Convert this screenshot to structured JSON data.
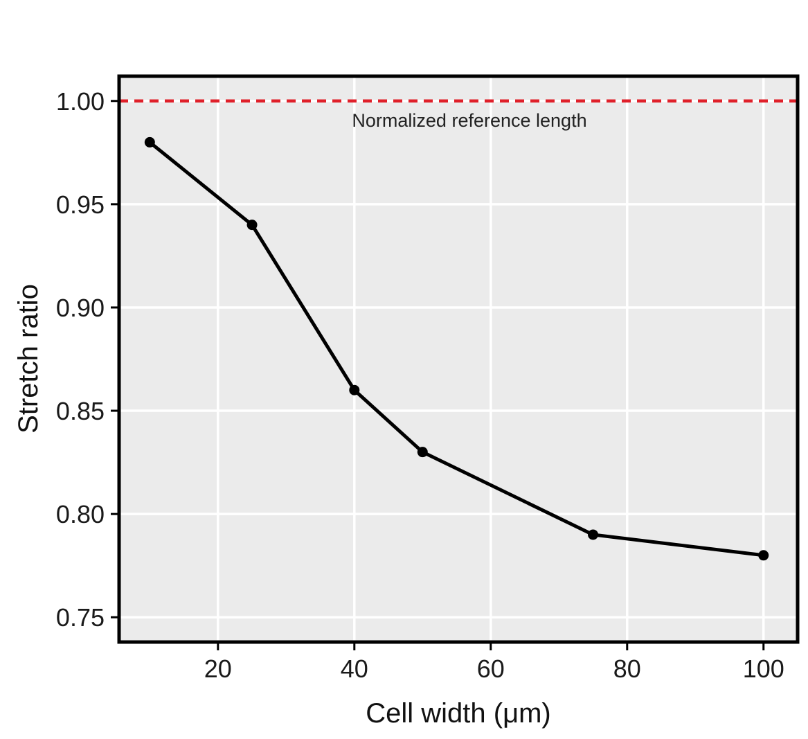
{
  "chart_data": {
    "type": "line",
    "title": "",
    "xlabel": "Cell width (μm)",
    "ylabel": "Stretch ratio",
    "xlim": [
      5.5,
      105
    ],
    "ylim": [
      0.738,
      1.012
    ],
    "xticks": [
      20,
      40,
      60,
      80,
      100
    ],
    "xtick_labels": [
      "20",
      "40",
      "60",
      "80",
      "100"
    ],
    "yticks": [
      0.75,
      0.8,
      0.85,
      0.9,
      0.95,
      1.0
    ],
    "ytick_labels": [
      "0.75",
      "0.80",
      "0.85",
      "0.90",
      "0.95",
      "1.00"
    ],
    "grid": true,
    "series": [
      {
        "x": [
          10,
          25,
          40,
          50,
          75,
          100
        ],
        "y": [
          0.98,
          0.94,
          0.86,
          0.83,
          0.79,
          0.78
        ],
        "color": "#000000",
        "markers": true
      }
    ],
    "reference_line": {
      "y": 1.0,
      "style": "dashed",
      "color": "#e0202a",
      "label": "Normalized reference length"
    },
    "colors": {
      "panel_background": "#ebebeb",
      "grid": "#ffffff",
      "border": "#000000"
    }
  }
}
